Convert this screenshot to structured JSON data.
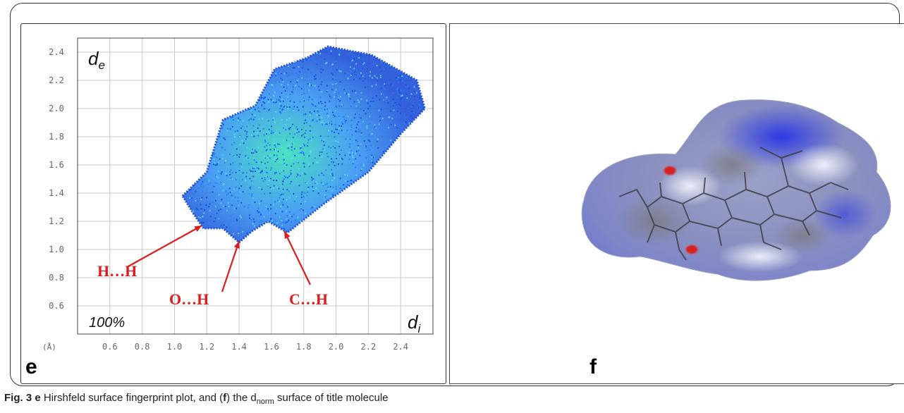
{
  "figure": {
    "caption": {
      "prefix": "Fig. 3",
      "e_marker": "e",
      "part1": " Hirshfeld surface fingerprint plot, and (",
      "f_marker": "f",
      "part2": ") the d",
      "norm_sub": "norm",
      "part3": " surface of title molecule"
    },
    "panel_e": {
      "label": "e"
    },
    "panel_f": {
      "label": "f"
    }
  },
  "chart_data": {
    "type": "heatmap",
    "title": "",
    "xlabel": "d",
    "xlabel_sub": "i",
    "ylabel": "d",
    "ylabel_sub": "e",
    "unit_label": "(Å)",
    "coverage_label": "100%",
    "xlim": [
      0.4,
      2.6
    ],
    "ylim": [
      0.4,
      2.5
    ],
    "x_ticks": [
      "0.6",
      "0.8",
      "1.0",
      "1.2",
      "1.4",
      "1.6",
      "1.8",
      "2.0",
      "2.2",
      "2.4"
    ],
    "y_ticks": [
      "0.6",
      "0.8",
      "1.0",
      "1.2",
      "1.4",
      "1.6",
      "1.8",
      "2.0",
      "2.2",
      "2.4"
    ],
    "grid": true,
    "point_color": "#1e4fd8",
    "dense_color": "#36e0b8",
    "annotation_color": "#dd1c1c",
    "annotations": [
      {
        "text": "H…H",
        "arrow_to": [
          1.17,
          1.17
        ]
      },
      {
        "text": "O…H",
        "arrow_to": [
          1.4,
          1.06
        ]
      },
      {
        "text": "C…H",
        "arrow_to": [
          1.68,
          1.13
        ]
      }
    ],
    "distribution_outline": [
      [
        1.05,
        1.38
      ],
      [
        1.2,
        1.55
      ],
      [
        1.3,
        1.92
      ],
      [
        1.5,
        2.02
      ],
      [
        1.62,
        2.28
      ],
      [
        1.82,
        2.36
      ],
      [
        1.95,
        2.44
      ],
      [
        2.22,
        2.38
      ],
      [
        2.5,
        2.2
      ],
      [
        2.55,
        2.0
      ],
      [
        2.4,
        1.82
      ],
      [
        2.2,
        1.55
      ],
      [
        1.92,
        1.32
      ],
      [
        1.7,
        1.12
      ],
      [
        1.58,
        1.2
      ],
      [
        1.48,
        1.13
      ],
      [
        1.4,
        1.05
      ],
      [
        1.3,
        1.15
      ],
      [
        1.18,
        1.15
      ],
      [
        1.12,
        1.25
      ]
    ]
  }
}
